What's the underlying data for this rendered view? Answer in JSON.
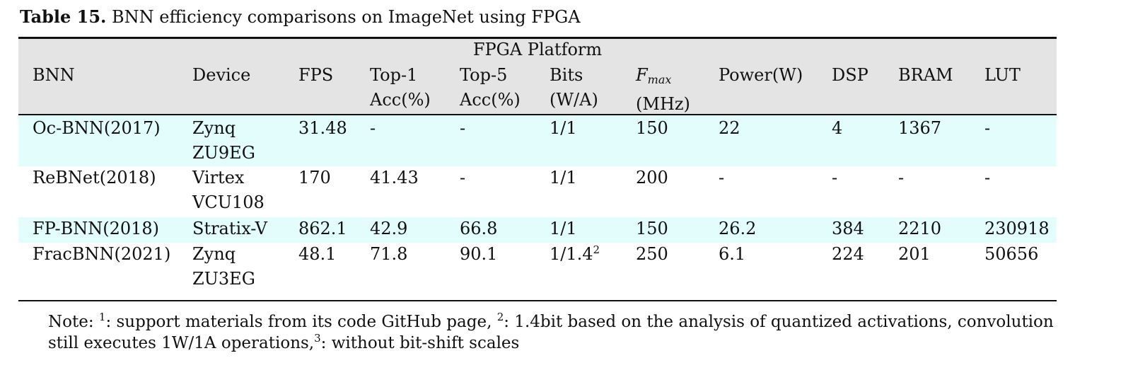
{
  "caption": {
    "label": "Table 15.",
    "text": "BNN efficiency comparisons on ImageNet using FPGA"
  },
  "group_header": "FPGA Platform",
  "headers": {
    "bnn": "BNN",
    "device": "Device",
    "fps": "FPS",
    "top1": [
      "Top-1",
      "Acc(%)"
    ],
    "top5": [
      "Top-5",
      "Acc(%)"
    ],
    "bits": [
      "Bits",
      "(W/A)"
    ],
    "fmax": {
      "symbol": "F",
      "subscript": "max",
      "unit": "(MHz)"
    },
    "power": "Power(W)",
    "dsp": "DSP",
    "bram": "BRAM",
    "lut": "LUT"
  },
  "rows": [
    {
      "bnn": "Oc-BNN(2017)",
      "device": [
        "Zynq",
        "ZU9EG"
      ],
      "fps": "31.48",
      "top1": "-",
      "top5": "-",
      "bits": "1/1",
      "bits_sup": "",
      "fmax": "150",
      "power": "22",
      "dsp": "4",
      "bram": "1367",
      "lut": "-"
    },
    {
      "bnn": "ReBNet(2018)",
      "device": [
        "Virtex",
        "VCU108"
      ],
      "fps": "170",
      "top1": "41.43",
      "top5": "-",
      "bits": "1/1",
      "bits_sup": "",
      "fmax": "200",
      "power": "-",
      "dsp": "-",
      "bram": "-",
      "lut": "-"
    },
    {
      "bnn": "FP-BNN(2018)",
      "device": [
        "Stratix-V",
        ""
      ],
      "fps": "862.1",
      "top1": "42.9",
      "top5": "66.8",
      "bits": "1/1",
      "bits_sup": "",
      "fmax": "150",
      "power": "26.2",
      "dsp": "384",
      "bram": "2210",
      "lut": "230918"
    },
    {
      "bnn": "FracBNN(2021)",
      "device": [
        "Zynq",
        "ZU3EG"
      ],
      "fps": "48.1",
      "top1": "71.8",
      "top5": "90.1",
      "bits": "1/1.4",
      "bits_sup": "2",
      "fmax": "250",
      "power": "6.1",
      "dsp": "224",
      "bram": "201",
      "lut": "50656"
    }
  ],
  "note": {
    "prefix": "Note: ",
    "sup1": "1",
    "text1": ": support materials from its code GitHub page, ",
    "sup2": "2",
    "text2": ": 1.4bit based on the analysis of quantized activations, convolution",
    "text3": "still executes 1W/1A operations,",
    "sup3": "3",
    "text4": ": without bit-shift scales"
  },
  "colors": {
    "header_bg": "#e4e4e4",
    "highlight_row_bg": "#e3fdfd",
    "rule": "#111111"
  }
}
